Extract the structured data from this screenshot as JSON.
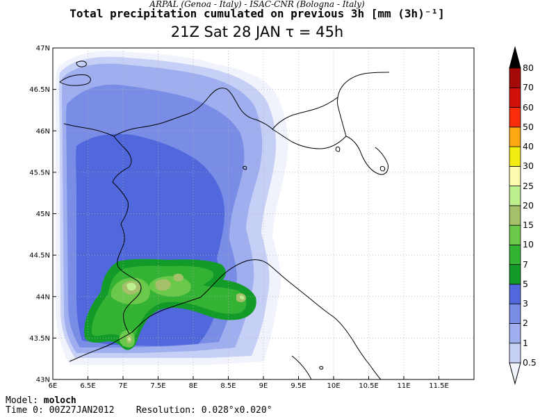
{
  "header": {
    "line1": "ARPAL (Genoa - Italy)   -   ISAC-CNR (Bologna - Italy)",
    "line2": "Total precipitation cumulated on previous 3h [mm (3h)⁻¹]",
    "line3": "21Z Sat 28 JAN  τ = 45h"
  },
  "map": {
    "lon_range": [
      6,
      12
    ],
    "lat_range": [
      43,
      47
    ],
    "lon_ticks": [
      "6E",
      "6.5E",
      "7E",
      "7.5E",
      "8E",
      "8.5E",
      "9E",
      "9.5E",
      "10E",
      "10.5E",
      "11E",
      "11.5E"
    ],
    "lat_ticks": [
      "43N",
      "43.5N",
      "44N",
      "44.5N",
      "45N",
      "45.5N",
      "46N",
      "46.5N",
      "47N"
    ],
    "grid": "dotted"
  },
  "colorbar": {
    "levels": [
      "0.5",
      "1",
      "2",
      "3",
      "5",
      "7",
      "10",
      "15",
      "20",
      "25",
      "30",
      "40",
      "50",
      "60",
      "70",
      "80"
    ],
    "colors": [
      "#f0f2fc",
      "#c6cff5",
      "#9eaeee",
      "#7a8de6",
      "#5068dc",
      "#139b2a",
      "#34b234",
      "#6ac84a",
      "#a6bf6b",
      "#bdef8f",
      "#fcfbae",
      "#f2ec13",
      "#fba812",
      "#fa2d0a",
      "#d1100a",
      "#a50a0a",
      "#7a0606",
      "#000000"
    ]
  },
  "footer": {
    "model_label": "Model:",
    "model_value": "moloch",
    "time_label": "Time 0:",
    "time_value": "00Z27JAN2012",
    "res_label": "Resolution:",
    "res_value": "0.028°x0.020°"
  }
}
